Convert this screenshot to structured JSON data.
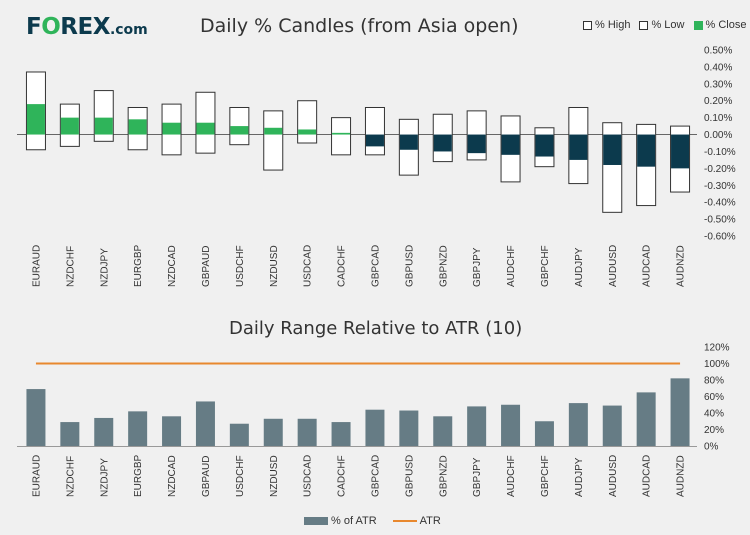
{
  "logo": {
    "prefix": "F",
    "o": "O",
    "suffix": "REX",
    "domain": ".com"
  },
  "colors": {
    "up": "#2fb45a",
    "down": "#0c3a4d",
    "bar": "#667c85",
    "atr_line": "#e8882e",
    "box_border": "#333333"
  },
  "chart_data": [
    {
      "type": "bar",
      "title": "Daily % Candles (from Asia open)",
      "categories": [
        "EURAUD",
        "NZDCHF",
        "NZDJPY",
        "EURGBP",
        "NZDCAD",
        "GBPAUD",
        "USDCHF",
        "NZDUSD",
        "USDCAD",
        "CADCHF",
        "GBPCAD",
        "GBPUSD",
        "GBPNZD",
        "GBPJPY",
        "AUDCHF",
        "GBPCHF",
        "AUDJPY",
        "AUDUSD",
        "AUDCAD",
        "AUDNZD"
      ],
      "series": [
        {
          "name": "% High",
          "values": [
            0.37,
            0.18,
            0.26,
            0.16,
            0.18,
            0.25,
            0.16,
            0.14,
            0.2,
            0.1,
            0.16,
            0.09,
            0.12,
            0.14,
            0.11,
            0.04,
            0.16,
            0.07,
            0.06,
            0.05
          ]
        },
        {
          "name": "% Low",
          "values": [
            -0.09,
            -0.07,
            -0.04,
            -0.09,
            -0.12,
            -0.11,
            -0.06,
            -0.21,
            -0.05,
            -0.12,
            -0.12,
            -0.24,
            -0.16,
            -0.15,
            -0.28,
            -0.19,
            -0.29,
            -0.46,
            -0.42,
            -0.34
          ]
        },
        {
          "name": "% Close",
          "values": [
            0.18,
            0.1,
            0.1,
            0.09,
            0.07,
            0.07,
            0.05,
            0.04,
            0.03,
            0.01,
            -0.07,
            -0.09,
            -0.1,
            -0.11,
            -0.12,
            -0.13,
            -0.15,
            -0.18,
            -0.19,
            -0.2
          ]
        }
      ],
      "yticks": [
        "0.50%",
        "0.40%",
        "0.30%",
        "0.20%",
        "0.10%",
        "0.00%",
        "-0.10%",
        "-0.20%",
        "-0.30%",
        "-0.40%",
        "-0.50%",
        "-0.60%"
      ],
      "ylim": [
        -0.6,
        0.5
      ],
      "legend_position": "top-right"
    },
    {
      "type": "bar",
      "title": "Daily Range Relative to ATR (10)",
      "categories": [
        "EURAUD",
        "NZDCHF",
        "NZDJPY",
        "EURGBP",
        "NZDCAD",
        "GBPAUD",
        "USDCHF",
        "NZDUSD",
        "USDCAD",
        "CADCHF",
        "GBPCAD",
        "GBPUSD",
        "GBPNZD",
        "GBPJPY",
        "AUDCHF",
        "GBPCHF",
        "AUDJPY",
        "AUDUSD",
        "AUDCAD",
        "AUDNZD"
      ],
      "series": [
        {
          "name": "% of ATR",
          "values": [
            69,
            29,
            34,
            42,
            36,
            54,
            27,
            33,
            33,
            29,
            44,
            43,
            36,
            48,
            50,
            30,
            52,
            49,
            65,
            82
          ]
        },
        {
          "name": "ATR",
          "values": [
            100,
            100,
            100,
            100,
            100,
            100,
            100,
            100,
            100,
            100,
            100,
            100,
            100,
            100,
            100,
            100,
            100,
            100,
            100,
            100
          ]
        }
      ],
      "yticks": [
        "120%",
        "100%",
        "80%",
        "60%",
        "40%",
        "20%",
        "0%"
      ],
      "ylim": [
        0,
        120
      ],
      "legend_position": "bottom-center"
    }
  ]
}
